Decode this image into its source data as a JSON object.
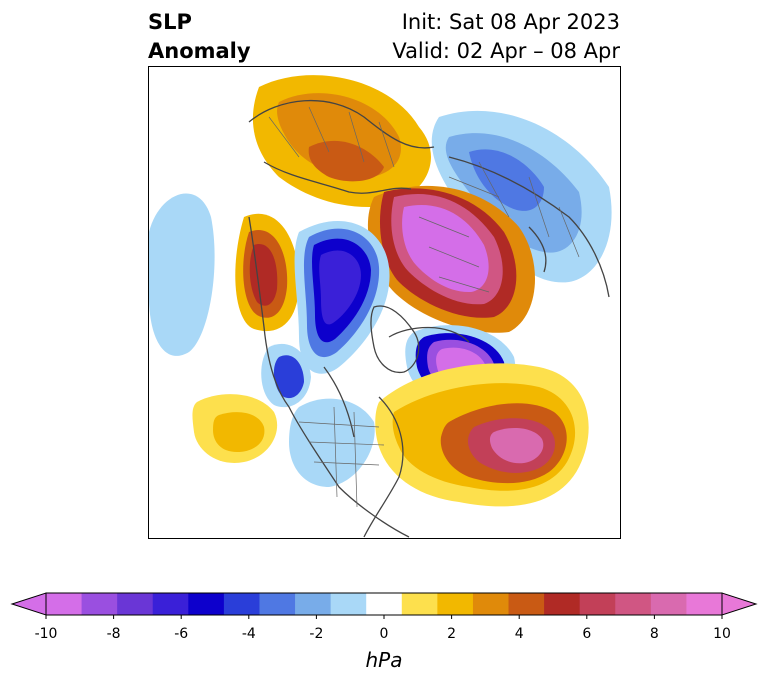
{
  "title": {
    "left_line1": "SLP",
    "left_line2": "Anomaly",
    "init": "Init: Sat 08 Apr 2023",
    "valid": "Valid: 02 Apr – 08 Apr"
  },
  "colorbar": {
    "unit": "hPa",
    "ticks": [
      "-10",
      "-8",
      "-6",
      "-4",
      "-2",
      "0",
      "2",
      "4",
      "6",
      "8",
      "10"
    ],
    "colors": [
      "#d46ee8",
      "#9a4fe0",
      "#6a36d6",
      "#3a20d8",
      "#0d00cc",
      "#2a3ed9",
      "#4f78e3",
      "#78ace9",
      "#a9d8f7",
      "#ffffff",
      "#fde04d",
      "#f2b800",
      "#e08a0a",
      "#c95a14",
      "#b02a25",
      "#c24058",
      "#d05683",
      "#d96aaf",
      "#e878d8"
    ],
    "extend_min_color": "#d46ee8",
    "extend_max_color": "#e878d8"
  }
}
